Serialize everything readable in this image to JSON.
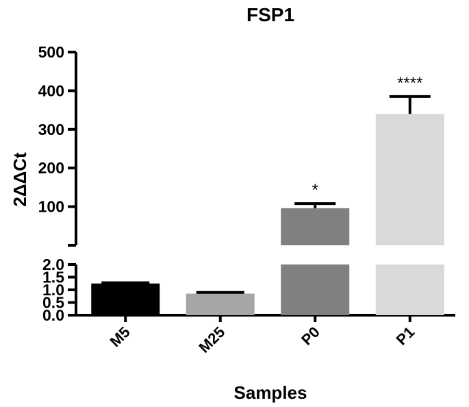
{
  "chart_data": {
    "type": "bar",
    "title": "FSP1",
    "xlabel": "Samples",
    "ylabel": "2ΔΔCt",
    "categories": [
      "M5",
      "M25",
      "P0",
      "P1"
    ],
    "values": [
      1.25,
      0.85,
      96,
      340
    ],
    "error": [
      0.03,
      0.05,
      12,
      45
    ],
    "significance": [
      "",
      "",
      "*",
      "****"
    ],
    "colors": [
      "#000000",
      "#a6a6a6",
      "#808080",
      "#d9d9d9"
    ],
    "axis_break": {
      "lower_ylim": [
        0,
        2.0
      ],
      "lower_ticks": [
        "0.0",
        "0.5",
        "1.0",
        "1.5",
        "2.0"
      ],
      "upper_ylim": [
        0,
        500
      ],
      "upper_ticks": [
        "100",
        "200",
        "300",
        "400",
        "500"
      ]
    },
    "grid": false
  }
}
